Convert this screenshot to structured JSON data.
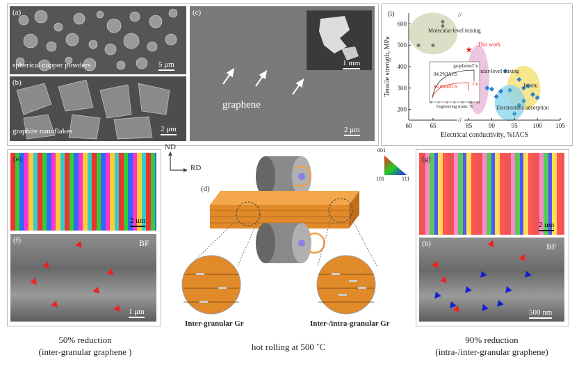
{
  "panels": {
    "a": {
      "label": "(a)",
      "caption": "spherical copper powders",
      "scale": "5 μm"
    },
    "b": {
      "label": "(b)",
      "caption": "graphite nanoflakes",
      "scale": "2 μm"
    },
    "c": {
      "label": "(c)",
      "caption": "graphene",
      "scale": "2 μm",
      "inset_scale": "1 mm"
    },
    "d": {
      "label": "(d)",
      "left_zoom": "Inter-granular Gr",
      "right_zoom": "Inter-/intra-granular Gr",
      "axis_nd": "ND",
      "axis_rd": "RD"
    },
    "e": {
      "label": "(e)",
      "scale": "2 um"
    },
    "f": {
      "label": "(f)",
      "tag": "BF",
      "scale": "1 μm"
    },
    "g": {
      "label": "(g)",
      "scale": "2 um"
    },
    "h": {
      "label": "(h)",
      "tag": "BF",
      "scale": "500 nm"
    },
    "ipf": {
      "top": "001",
      "left": "101",
      "right": "111"
    }
  },
  "captions": {
    "left_line1": "50%  reduction",
    "left_line2": "(inter-granular graphene )",
    "center": "hot rolling at 500 ˚C",
    "right_line1": "90% reduction",
    "right_line2": "(intra-/inter-granular graphene)"
  },
  "colors": {
    "red_arrow": "#e22222",
    "blue_arrow": "#1122cc",
    "copper": "#e08a2a"
  },
  "chart_data": {
    "type": "scatter",
    "label": "(i)",
    "xlabel": "Electrical conductivity, %IACS",
    "ylabel": "Tensile strength, MPa",
    "xticks": [
      "60",
      "65",
      "85",
      "90",
      "95",
      "100",
      "105"
    ],
    "yticks": [
      "200",
      "300",
      "400",
      "500",
      "600"
    ],
    "ylim": [
      150,
      650
    ],
    "annotations": [
      "Molecular-level mixing",
      "This work",
      "Molecular-level mixing",
      "In situ",
      "Electrostatic adsorption"
    ],
    "series": [
      {
        "name": "Molecular-level mixing",
        "points": [
          [
            62,
            500
          ],
          [
            65,
            500
          ],
          [
            67,
            590
          ],
          [
            67,
            610
          ],
          [
            86,
            415
          ],
          [
            86,
            380
          ],
          [
            86,
            350
          ],
          [
            86,
            250
          ],
          [
            87,
            320
          ]
        ]
      },
      {
        "name": "This work",
        "points": [
          [
            85,
            480
          ]
        ]
      },
      {
        "name": "In situ",
        "points": [
          [
            89,
            300
          ],
          [
            90,
            295
          ],
          [
            91,
            260
          ],
          [
            92,
            285
          ],
          [
            96,
            340
          ],
          [
            97,
            300
          ],
          [
            98,
            310
          ],
          [
            99,
            270
          ],
          [
            100,
            255
          ]
        ]
      },
      {
        "name": "Electrostatic adsorption",
        "points": [
          [
            93,
            380
          ],
          [
            94,
            290
          ],
          [
            95,
            180
          ],
          [
            96,
            220
          ],
          [
            97,
            240
          ]
        ]
      }
    ],
    "inset": {
      "title": "graphene/Cu",
      "xlabel": "Engineering strain, %",
      "ylabel": "Engineering stress, MPa",
      "xticks": [
        "0",
        "2",
        "4",
        "6",
        "8",
        "10",
        "12"
      ],
      "yticks": [
        "0",
        "100",
        "200",
        "300",
        "400",
        "500"
      ],
      "label_graphene": "84.2%IACS",
      "label_cu_value": "86.0%IACS",
      "label_cu": "Cu"
    }
  }
}
